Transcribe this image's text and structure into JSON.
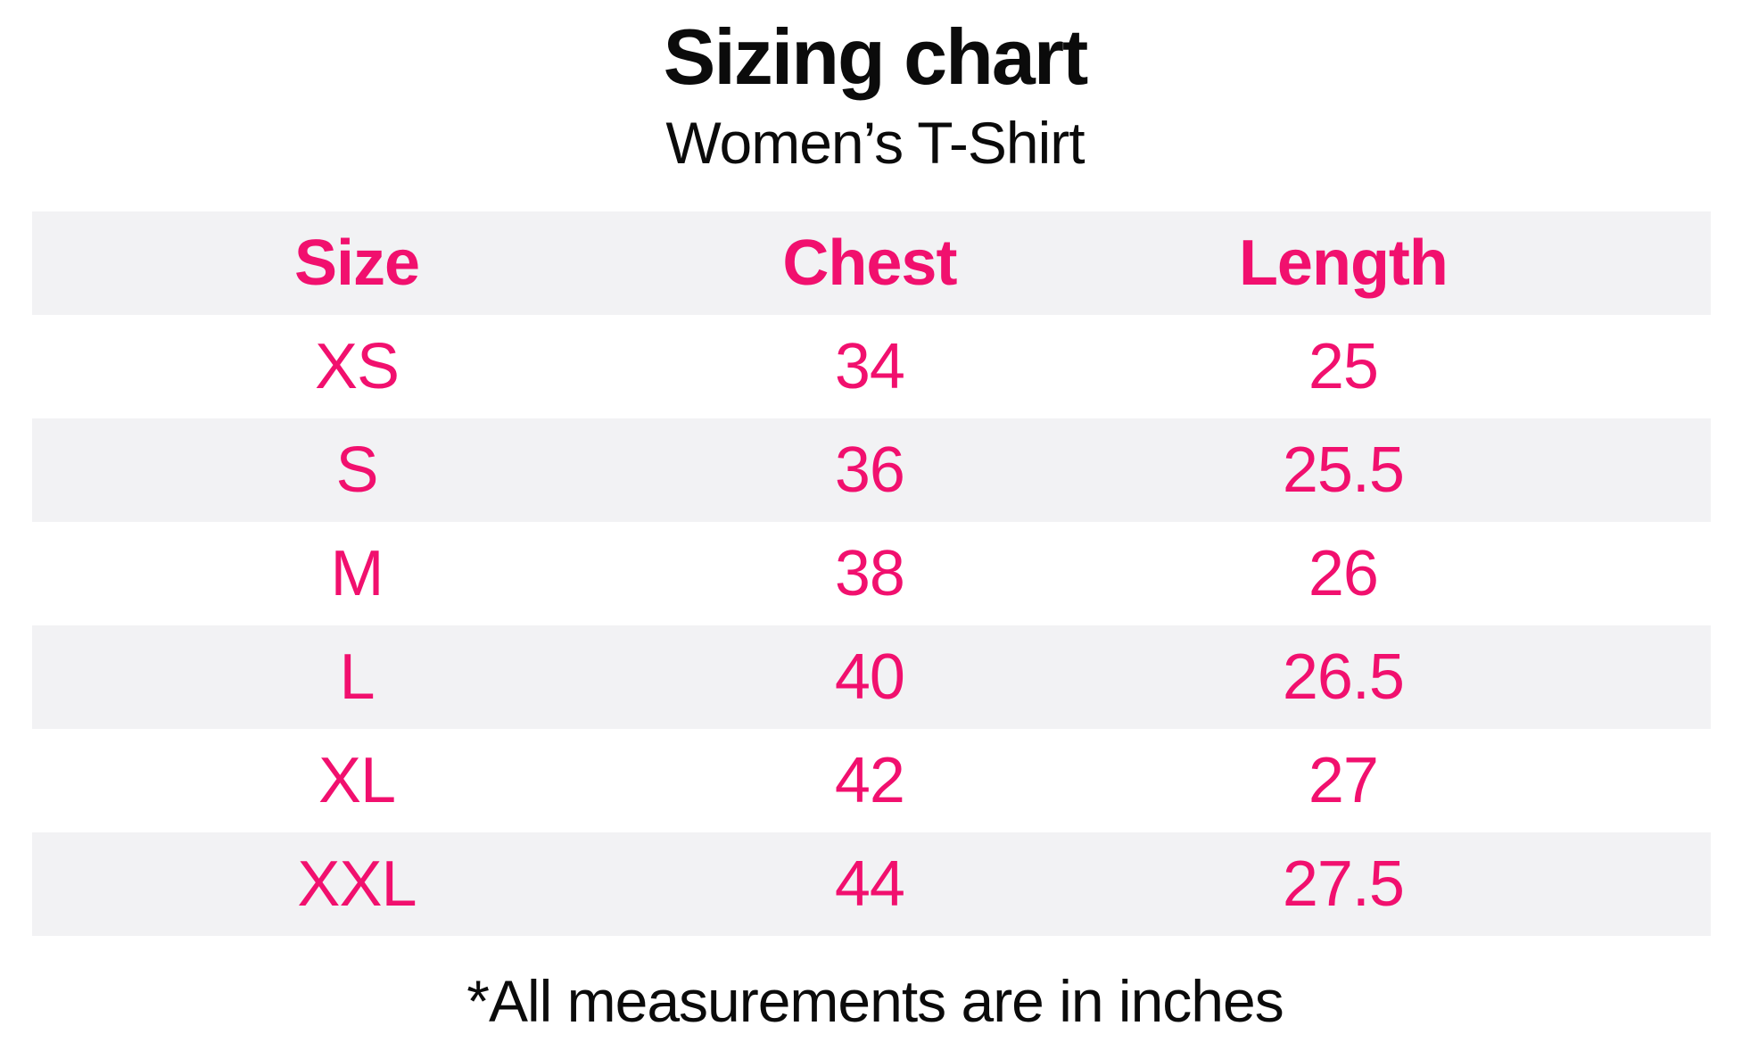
{
  "chart_data": {
    "type": "table",
    "title": "Sizing chart",
    "subtitle": "Women’s T-Shirt",
    "columns": [
      "Size",
      "Chest",
      "Length"
    ],
    "rows": [
      [
        "XS",
        "34",
        "25"
      ],
      [
        "S",
        "36",
        "25.5"
      ],
      [
        "M",
        "38",
        "26"
      ],
      [
        "L",
        "40",
        "26.5"
      ],
      [
        "XL",
        "42",
        "27"
      ],
      [
        "XXL",
        "44",
        "27.5"
      ]
    ],
    "footnote": "*All measurements are in inches",
    "units": "inches",
    "layout": {
      "striped_rows": true,
      "stripe_pattern": "header and even data rows shaded"
    }
  },
  "colors": {
    "accent": "#F1106E",
    "stripe": "#F2F2F4",
    "text": "#0B0B0B",
    "background": "#FFFFFF"
  }
}
